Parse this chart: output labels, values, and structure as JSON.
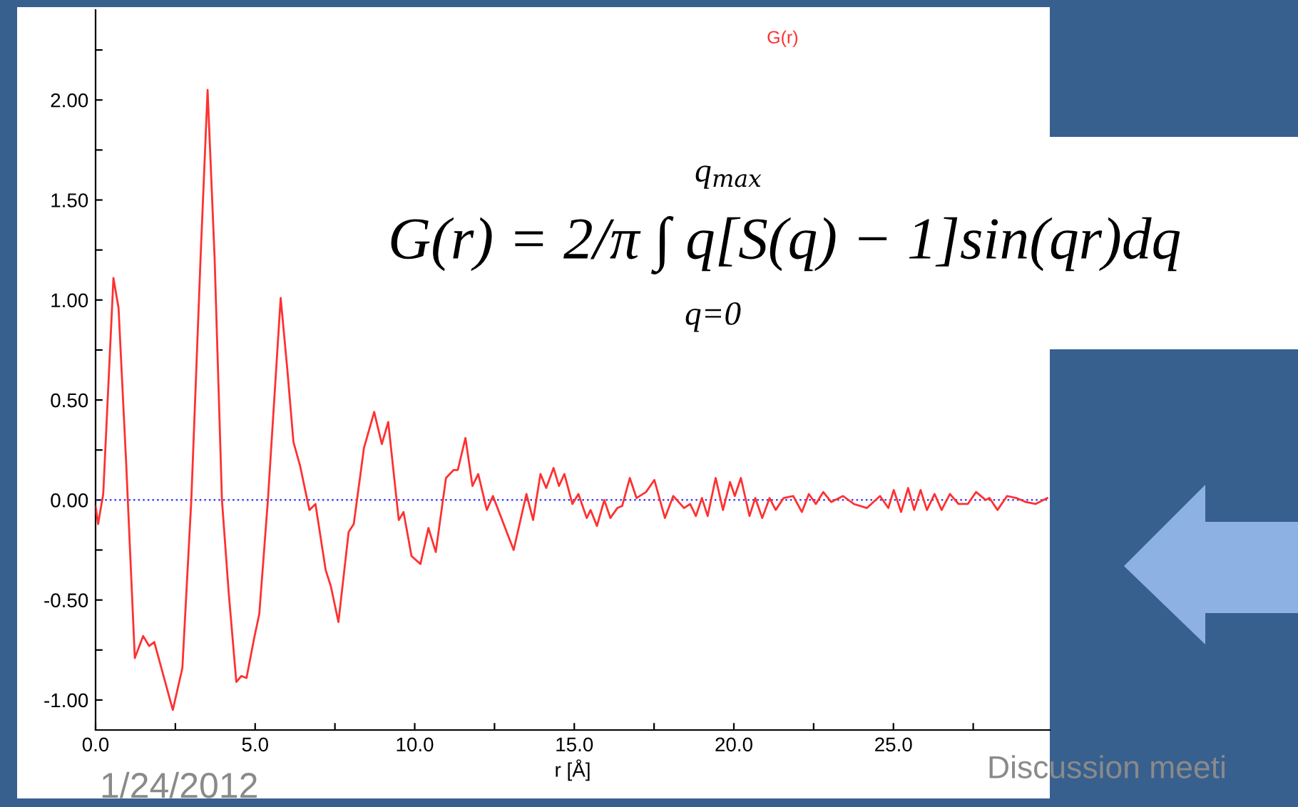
{
  "chart_data": {
    "type": "line",
    "xlabel": "r [Å]",
    "x": [
      0,
      0.08,
      0.24,
      0.56,
      0.72,
      0.96,
      1.23,
      1.49,
      1.68,
      1.84,
      2.42,
      2.72,
      3.0,
      3.29,
      3.51,
      3.73,
      3.96,
      4.17,
      4.41,
      4.57,
      4.73,
      4.97,
      5.13,
      5.4,
      5.8,
      6.01,
      6.2,
      6.41,
      6.7,
      6.89,
      7.21,
      7.37,
      7.61,
      7.93,
      8.09,
      8.41,
      8.73,
      8.97,
      9.17,
      9.5,
      9.65,
      9.9,
      10.18,
      10.43,
      10.66,
      10.98,
      11.22,
      11.35,
      11.59,
      11.81,
      11.99,
      12.26,
      12.45,
      13.1,
      13.5,
      13.71,
      13.94,
      14.12,
      14.35,
      14.52,
      14.69,
      14.94,
      15.13,
      15.39,
      15.51,
      15.71,
      15.94,
      16.13,
      16.35,
      16.5,
      16.74,
      16.95,
      17.25,
      17.51,
      17.84,
      18.1,
      18.44,
      18.63,
      18.81,
      19.0,
      19.18,
      19.43,
      19.66,
      19.88,
      20.03,
      20.22,
      20.49,
      20.67,
      20.89,
      21.12,
      21.31,
      21.56,
      21.86,
      22.13,
      22.35,
      22.57,
      22.8,
      23.05,
      23.42,
      23.76,
      24.17,
      24.58,
      24.84,
      25.01,
      25.24,
      25.46,
      25.65,
      25.85,
      26.05,
      26.29,
      26.51,
      26.77,
      27.04,
      27.33,
      27.59,
      27.89,
      28.01,
      28.26,
      28.56,
      28.85,
      29.15,
      29.45,
      29.82
    ],
    "series": [
      {
        "name": "G(r)",
        "color": "#ff3030",
        "values": [
          -0.03,
          -0.12,
          0.03,
          1.11,
          0.96,
          0.18,
          -0.79,
          -0.68,
          -0.73,
          -0.71,
          -1.05,
          -0.84,
          0,
          1.21,
          2.05,
          1.21,
          0,
          -0.46,
          -0.91,
          -0.88,
          -0.89,
          -0.69,
          -0.57,
          0,
          1.01,
          0.65,
          0.29,
          0.17,
          -0.05,
          -0.02,
          -0.35,
          -0.43,
          -0.61,
          -0.16,
          -0.12,
          0.26,
          0.44,
          0.28,
          0.39,
          -0.1,
          -0.06,
          -0.28,
          -0.32,
          -0.14,
          -0.26,
          0.11,
          0.15,
          0.15,
          0.31,
          0.07,
          0.13,
          -0.05,
          0.02,
          -0.25,
          0.03,
          -0.1,
          0.13,
          0.06,
          0.16,
          0.07,
          0.13,
          -0.02,
          0.03,
          -0.09,
          -0.05,
          -0.13,
          0,
          -0.09,
          -0.04,
          -0.03,
          0.11,
          0.01,
          0.04,
          0.1,
          -0.09,
          0.02,
          -0.04,
          -0.02,
          -0.08,
          0.01,
          -0.08,
          0.11,
          -0.05,
          0.09,
          0.02,
          0.11,
          -0.08,
          0.01,
          -0.09,
          0.01,
          -0.05,
          0.01,
          0.02,
          -0.06,
          0.03,
          -0.02,
          0.04,
          -0.01,
          0.02,
          -0.02,
          -0.04,
          0.02,
          -0.04,
          0.05,
          -0.06,
          0.06,
          -0.05,
          0.05,
          -0.05,
          0.03,
          -0.05,
          0.03,
          -0.02,
          -0.02,
          0.04,
          0,
          0.01,
          -0.05,
          0.02,
          0.01,
          -0.01,
          -0.02,
          0.01
        ]
      }
    ],
    "xlim": [
      0,
      29.9
    ],
    "ylim": [
      -1.15,
      2.45
    ],
    "xticks": [
      {
        "value": 0,
        "label": "0.0"
      },
      {
        "value": 2.5,
        "label": null
      },
      {
        "value": 5,
        "label": "5.0"
      },
      {
        "value": 7.5,
        "label": null
      },
      {
        "value": 10,
        "label": "10.0"
      },
      {
        "value": 12.5,
        "label": null
      },
      {
        "value": 15,
        "label": "15.0"
      },
      {
        "value": 17.5,
        "label": null
      },
      {
        "value": 20,
        "label": "20.0"
      },
      {
        "value": 22.5,
        "label": null
      },
      {
        "value": 25,
        "label": "25.0"
      },
      {
        "value": 27.5,
        "label": null
      }
    ],
    "yticks": [
      {
        "value": -1,
        "label": "-1.00"
      },
      {
        "value": -0.75,
        "label": null
      },
      {
        "value": -0.5,
        "label": "-0.50"
      },
      {
        "value": -0.25,
        "label": null
      },
      {
        "value": 0,
        "label": "0.00"
      },
      {
        "value": 0.25,
        "label": null
      },
      {
        "value": 0.5,
        "label": "0.50"
      },
      {
        "value": 0.75,
        "label": null
      },
      {
        "value": 1,
        "label": "1.00"
      },
      {
        "value": 1.25,
        "label": null
      },
      {
        "value": 1.5,
        "label": "1.50"
      },
      {
        "value": 1.75,
        "label": null
      },
      {
        "value": 2,
        "label": "2.00"
      },
      {
        "value": 2.25,
        "label": null
      }
    ],
    "ref_lines": [
      {
        "axis": "y",
        "value": 0,
        "color": "#4040ff",
        "line_style": "dotted"
      }
    ],
    "grid": false,
    "marker": "none",
    "line_style": "solid",
    "annotations": [
      "G(r) = 2/π ∫ q[S(q) − 1]sin(qr)dq",
      "q$_{max}$",
      "q=0",
      "1/24/2012",
      "Discussion meeti"
    ]
  }
}
